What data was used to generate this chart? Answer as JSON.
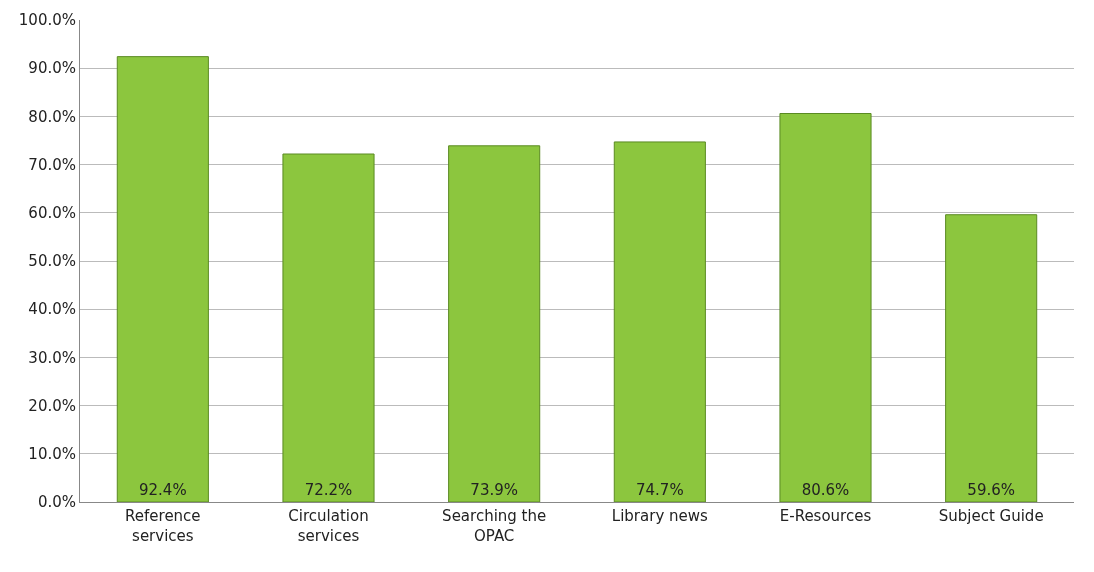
{
  "chart_data": {
    "type": "bar",
    "categories": [
      "Reference services",
      "Circulation services",
      "Searching the OPAC",
      "Library news",
      "E-Resources",
      "Subject Guide"
    ],
    "values": [
      92.4,
      72.2,
      73.9,
      74.7,
      80.6,
      59.6
    ],
    "value_labels": [
      "92.4%",
      "72.2%",
      "73.9%",
      "74.7%",
      "80.6%",
      "59.6%"
    ],
    "color": "#8cc63e",
    "ylim": [
      0,
      100
    ],
    "yticks": [
      {
        "value": 0,
        "label": "0.0%"
      },
      {
        "value": 10,
        "label": "10.0%"
      },
      {
        "value": 20,
        "label": "20.0%"
      },
      {
        "value": 30,
        "label": "30.0%"
      },
      {
        "value": 40,
        "label": "40.0%"
      },
      {
        "value": 50,
        "label": "50.0%"
      },
      {
        "value": 60,
        "label": "60.0%"
      },
      {
        "value": 70,
        "label": "70.0%"
      },
      {
        "value": 80,
        "label": "80.0%"
      },
      {
        "value": 90,
        "label": "90.0%"
      },
      {
        "value": 100,
        "label": "100.0%"
      }
    ],
    "grid": "y"
  }
}
